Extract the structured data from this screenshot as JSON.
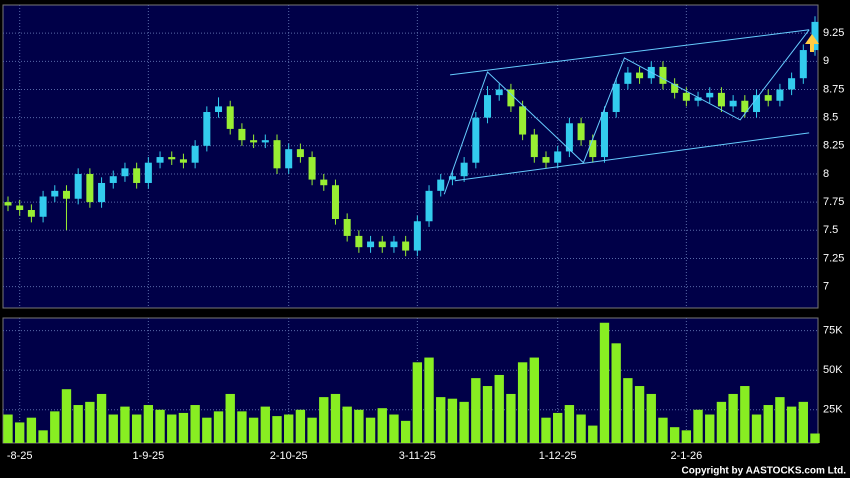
{
  "chart_data": [
    {
      "type": "candlestick",
      "categories": [
        null,
        "-8-25",
        null,
        null,
        null,
        null,
        null,
        null,
        null,
        null,
        null,
        null,
        "1-9-25",
        null,
        null,
        null,
        null,
        null,
        null,
        null,
        null,
        null,
        null,
        null,
        "2-10-25",
        null,
        null,
        null,
        null,
        null,
        null,
        null,
        null,
        null,
        null,
        "3-11-25",
        null,
        null,
        null,
        null,
        null,
        null,
        null,
        null,
        null,
        null,
        null,
        "1-12-25",
        null,
        null,
        null,
        null,
        null,
        null,
        null,
        null,
        null,
        null,
        "2-1-26",
        null,
        null,
        null,
        null,
        null,
        null,
        null,
        null,
        null,
        null,
        null
      ],
      "open": [
        7.75,
        7.72,
        7.68,
        7.62,
        7.8,
        7.85,
        7.78,
        8.0,
        7.75,
        7.92,
        7.98,
        8.05,
        7.92,
        8.1,
        8.15,
        8.13,
        8.1,
        8.25,
        8.55,
        8.6,
        8.4,
        8.3,
        8.28,
        8.3,
        8.05,
        8.22,
        8.15,
        7.95,
        7.9,
        7.6,
        7.45,
        7.35,
        7.4,
        7.35,
        7.4,
        7.32,
        7.58,
        7.85,
        7.95,
        7.98,
        8.1,
        8.5,
        8.7,
        8.75,
        8.6,
        8.35,
        8.15,
        8.1,
        8.2,
        8.45,
        8.3,
        8.15,
        8.55,
        8.8,
        8.9,
        8.85,
        8.95,
        8.8,
        8.72,
        8.65,
        8.68,
        8.72,
        8.6,
        8.65,
        8.55,
        8.7,
        8.65,
        8.75,
        8.85,
        9.1
      ],
      "high": [
        7.8,
        7.77,
        7.73,
        7.85,
        7.9,
        7.9,
        8.05,
        8.05,
        7.97,
        8.03,
        8.1,
        8.1,
        8.15,
        8.2,
        8.2,
        8.18,
        8.3,
        8.6,
        8.68,
        8.65,
        8.45,
        8.35,
        8.35,
        8.35,
        8.27,
        8.27,
        8.2,
        8.0,
        7.95,
        7.65,
        7.5,
        7.45,
        7.45,
        7.45,
        7.45,
        7.63,
        7.9,
        8.0,
        8.03,
        8.15,
        8.55,
        8.78,
        8.8,
        8.8,
        8.65,
        8.4,
        8.2,
        8.25,
        8.5,
        8.5,
        8.35,
        8.6,
        8.85,
        8.95,
        8.95,
        9.0,
        9.0,
        8.85,
        8.77,
        8.73,
        8.77,
        8.77,
        8.7,
        8.7,
        8.75,
        8.75,
        8.8,
        8.9,
        9.15,
        9.4
      ],
      "low": [
        7.67,
        7.63,
        7.57,
        7.57,
        7.75,
        7.5,
        7.73,
        7.7,
        7.7,
        7.87,
        7.93,
        7.87,
        7.87,
        8.05,
        8.08,
        8.05,
        8.05,
        8.2,
        8.5,
        8.35,
        8.25,
        8.23,
        8.23,
        8.0,
        8.0,
        8.1,
        7.9,
        7.85,
        7.55,
        7.4,
        7.3,
        7.3,
        7.3,
        7.3,
        7.27,
        7.27,
        7.53,
        7.8,
        7.9,
        7.93,
        8.05,
        8.45,
        8.65,
        8.55,
        8.3,
        8.1,
        8.05,
        8.05,
        8.15,
        8.25,
        8.1,
        8.1,
        8.5,
        8.75,
        8.8,
        8.8,
        8.75,
        8.67,
        8.6,
        8.6,
        8.63,
        8.55,
        8.55,
        8.5,
        8.5,
        8.6,
        8.6,
        8.7,
        8.8,
        9.05
      ],
      "close": [
        7.72,
        7.68,
        7.62,
        7.8,
        7.85,
        7.78,
        8.0,
        7.75,
        7.92,
        7.98,
        8.05,
        7.92,
        8.1,
        8.15,
        8.13,
        8.1,
        8.25,
        8.55,
        8.6,
        8.4,
        8.3,
        8.28,
        8.3,
        8.05,
        8.22,
        8.15,
        7.95,
        7.9,
        7.6,
        7.45,
        7.35,
        7.4,
        7.35,
        7.4,
        7.32,
        7.58,
        7.85,
        7.95,
        7.98,
        8.1,
        8.5,
        8.7,
        8.75,
        8.6,
        8.35,
        8.15,
        8.1,
        8.2,
        8.45,
        8.3,
        8.15,
        8.55,
        8.8,
        8.9,
        8.85,
        8.95,
        8.8,
        8.72,
        8.65,
        8.68,
        8.72,
        8.6,
        8.65,
        8.55,
        8.7,
        8.65,
        8.75,
        8.85,
        9.1,
        9.35
      ],
      "up_color": "#33ccee",
      "down_color": "#99ee33",
      "ylim": [
        6.81,
        9.5
      ],
      "yticks": [
        7,
        7.25,
        7.5,
        7.75,
        8,
        8.25,
        8.5,
        8.75,
        9,
        9.25
      ],
      "grid": true,
      "trend_lines": [
        {
          "color": "#66ccff",
          "x": [
            37.8,
            68.5
          ],
          "y": [
            8.88,
            9.28
          ]
        },
        {
          "color": "#66ccff",
          "x": [
            38.2,
            68.5
          ],
          "y": [
            7.94,
            8.365
          ]
        },
        {
          "color": "#66ccff",
          "x": [
            37.3,
            41.0,
            49.2,
            52.7,
            62.6,
            68.5
          ],
          "y": [
            7.82,
            8.905,
            8.1,
            9.03,
            8.48,
            9.28
          ]
        }
      ]
    },
    {
      "type": "bar",
      "values": [
        22000,
        17000,
        20000,
        12000,
        24000,
        38000,
        28000,
        30000,
        35000,
        22000,
        27000,
        22000,
        28000,
        25000,
        22000,
        23000,
        28000,
        20000,
        24000,
        35000,
        24000,
        20000,
        27000,
        21000,
        22000,
        25000,
        20000,
        33000,
        35000,
        27000,
        25000,
        20000,
        26000,
        22000,
        18000,
        55000,
        58000,
        33000,
        32000,
        30000,
        45000,
        40000,
        47000,
        35000,
        55000,
        58000,
        20000,
        23000,
        28000,
        22000,
        15000,
        80000,
        67000,
        45000,
        40000,
        35000,
        20000,
        14000,
        12000,
        25000,
        22000,
        30000,
        35000,
        40000,
        22000,
        28000,
        33000,
        27000,
        30000,
        10000
      ],
      "color": "#88ee22",
      "ylim": [
        4000,
        83000
      ],
      "yticks": [
        {
          "value": 25000,
          "label": "25K"
        },
        {
          "value": 50000,
          "label": "50K"
        },
        {
          "value": 75000,
          "label": "75K"
        }
      ],
      "grid": true
    }
  ],
  "footer": "Copyright by AASTOCKS.com Ltd."
}
